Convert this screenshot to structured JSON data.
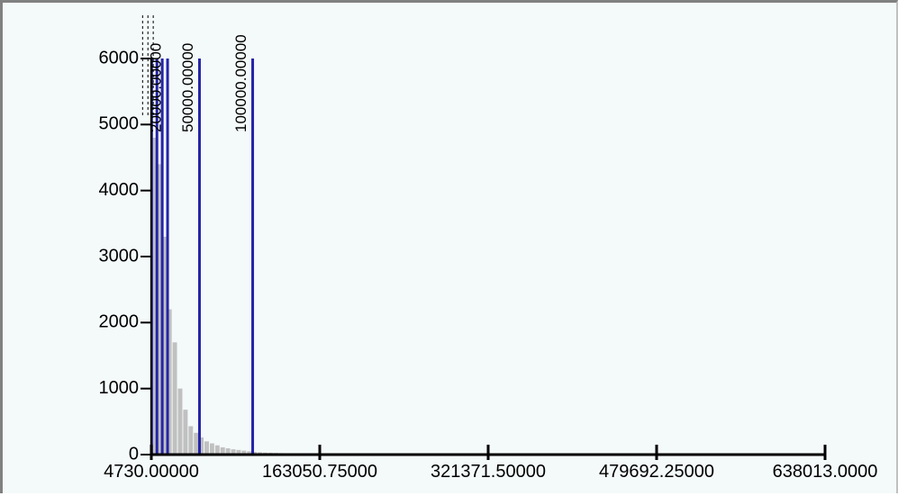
{
  "chart_data": {
    "type": "bar",
    "title": "",
    "xlabel": "",
    "ylabel": "",
    "xlim": [
      4730.0,
      638013.0
    ],
    "ylim": [
      0,
      6000
    ],
    "grid": false,
    "x_ticks": [
      4730.0,
      163050.75,
      321371.5,
      479692.25,
      638013.0
    ],
    "x_tick_labels": [
      "4730.00000",
      "163050.75000",
      "321371.50000",
      "479692.25000",
      "638013.0000"
    ],
    "y_ticks": [
      0,
      1000,
      2000,
      3000,
      4000,
      5000,
      6000
    ],
    "y_tick_labels": [
      "0",
      "1000",
      "2000",
      "3000",
      "4000",
      "5000",
      "6000"
    ],
    "histogram": {
      "bin_width": 5000,
      "bin_starts": [
        4730,
        9730,
        14730,
        19730,
        24730,
        29730,
        34730,
        39730,
        44730,
        49730,
        54730,
        59730,
        64730,
        69730,
        74730,
        79730,
        84730,
        89730,
        94730,
        99730,
        104730,
        109730,
        114730,
        119730,
        124730,
        129730,
        134730,
        139730,
        144730,
        149730,
        154730,
        159730,
        164730,
        169730,
        179730,
        189730,
        199730,
        214730,
        229730,
        249730,
        269730
      ],
      "values": [
        4800,
        4400,
        3300,
        2200,
        1700,
        1000,
        680,
        430,
        330,
        260,
        200,
        170,
        140,
        110,
        95,
        80,
        70,
        60,
        50,
        40,
        35,
        30,
        28,
        25,
        22,
        20,
        18,
        16,
        15,
        14,
        13,
        12,
        11,
        10,
        9,
        8,
        7,
        6,
        5,
        5,
        4
      ],
      "color": "#c0c0c0"
    },
    "thresholds": [
      {
        "value": 5000,
        "label": ""
      },
      {
        "value": 10000,
        "label": ""
      },
      {
        "value": 15000,
        "label": ""
      },
      {
        "value": 20000,
        "label": "20000.00000"
      },
      {
        "value": 50000,
        "label": "50000.00000"
      },
      {
        "value": 100000,
        "label": "100000.00000"
      }
    ],
    "threshold_color": "#2424a8"
  }
}
